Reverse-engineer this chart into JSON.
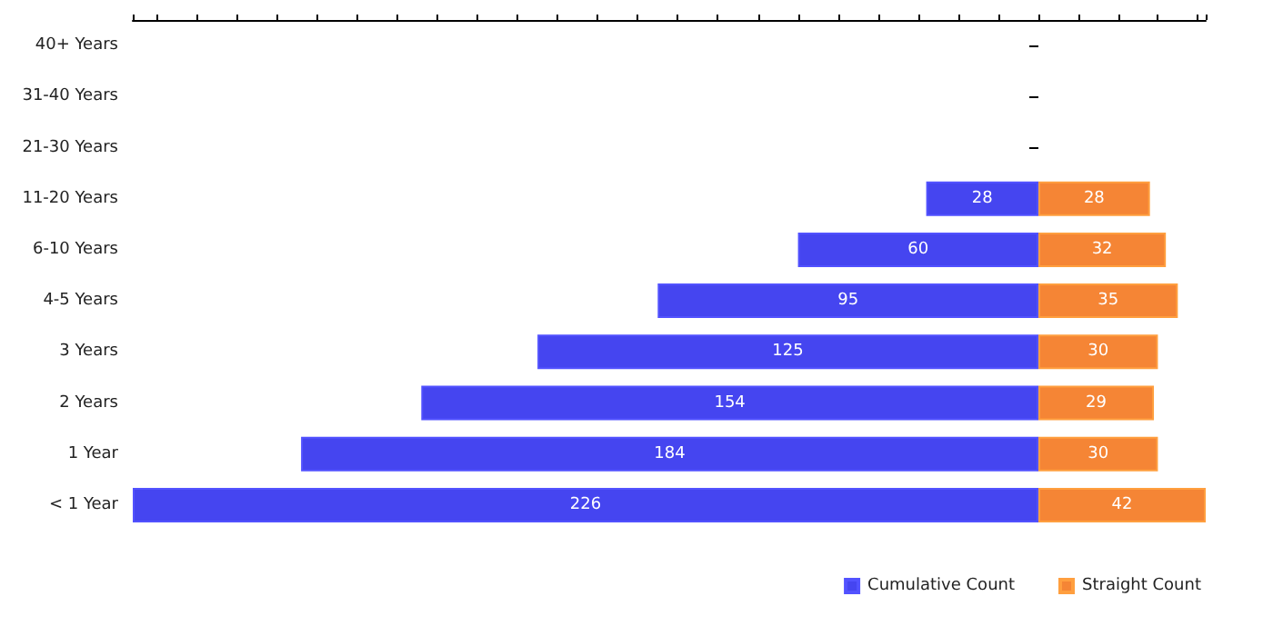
{
  "chart_data": [
    {
      "type": "bar",
      "orientation": "horizontal",
      "categories": [
        "40+ Years",
        "31-40 Years",
        "21-30 Years",
        "11-20 Years",
        "6-10 Years",
        "4-5 Years",
        "3 Years",
        "2 Years",
        "1 Year",
        "< 1 Year"
      ],
      "series": [
        {
          "name": "Cumulative Count",
          "color": "#4545f0",
          "values": [
            null,
            null,
            null,
            28,
            60,
            95,
            125,
            154,
            184,
            226
          ]
        }
      ],
      "data_labels": true,
      "tick_labels": "y",
      "grid": false,
      "legend": "bottom"
    },
    {
      "type": "bar",
      "orientation": "horizontal",
      "series": [
        {
          "name": "Straight Count",
          "color": "#f58535",
          "values": [
            null,
            null,
            null,
            28,
            32,
            35,
            30,
            29,
            30,
            42
          ]
        }
      ],
      "data_labels": true,
      "tick_labels": false,
      "grid": false,
      "legend": "bottom"
    }
  ]
}
